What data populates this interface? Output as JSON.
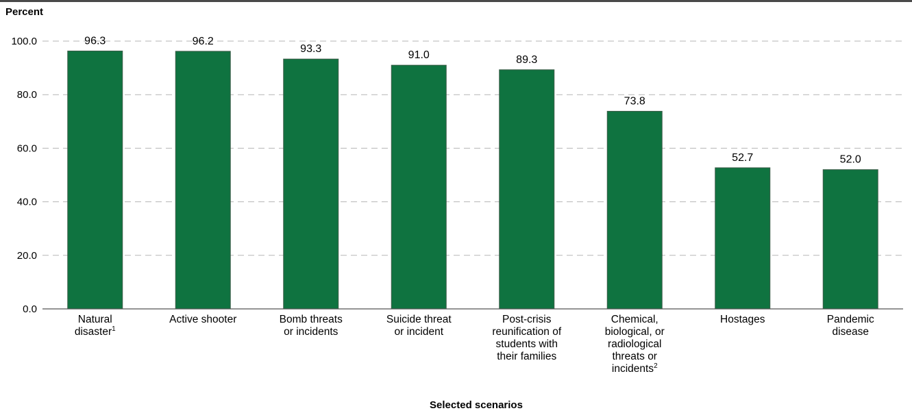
{
  "chart_data": {
    "type": "bar",
    "ylabel": "Percent",
    "xlabel": "Selected scenarios",
    "ylim": [
      0,
      100
    ],
    "yticks": [
      "0.0",
      "20.0",
      "40.0",
      "60.0",
      "80.0",
      "100.0"
    ],
    "grid": true,
    "bar_color": "#0f7340",
    "categories": [
      {
        "lines": [
          "Natural",
          "disaster"
        ],
        "footnote": "1"
      },
      {
        "lines": [
          "Active shooter"
        ]
      },
      {
        "lines": [
          "Bomb threats",
          "or incidents"
        ]
      },
      {
        "lines": [
          "Suicide threat",
          "or incident"
        ]
      },
      {
        "lines": [
          "Post-crisis",
          "reunification of",
          "students with",
          "their families"
        ]
      },
      {
        "lines": [
          "Chemical,",
          "biological, or",
          "radiological",
          "threats or",
          "incidents"
        ],
        "footnote": "2"
      },
      {
        "lines": [
          "Hostages"
        ]
      },
      {
        "lines": [
          "Pandemic",
          "disease"
        ]
      }
    ],
    "values": [
      96.3,
      96.2,
      93.3,
      91.0,
      89.3,
      73.8,
      52.7,
      52.0
    ],
    "value_labels": [
      "96.3",
      "96.2",
      "93.3",
      "91.0",
      "89.3",
      "73.8",
      "52.7",
      "52.0"
    ]
  }
}
